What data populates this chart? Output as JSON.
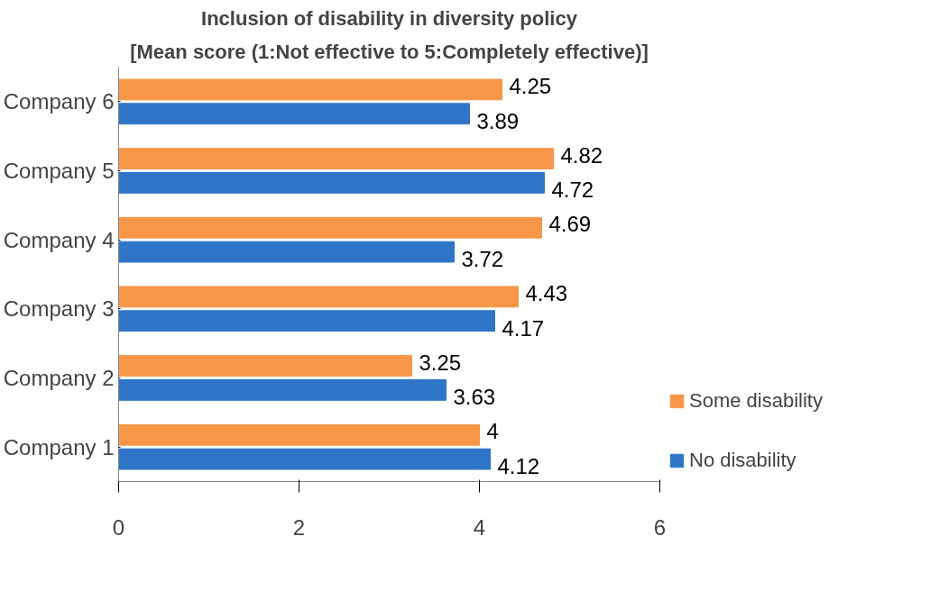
{
  "chart_data": {
    "type": "bar",
    "orientation": "horizontal",
    "title": "Inclusion of disability in diversity policy",
    "subtitle": "[Mean score (1:Not effective to 5:Completely effective)]",
    "categories": [
      "Company 6",
      "Company 5",
      "Company 4",
      "Company 3",
      "Company 2",
      "Company 1"
    ],
    "series": [
      {
        "name": "Some disability",
        "color": "#f79646",
        "values": [
          4.25,
          4.82,
          4.69,
          4.43,
          3.25,
          4
        ]
      },
      {
        "name": "No disability",
        "color": "#2e75c8",
        "values": [
          3.89,
          4.72,
          3.72,
          4.17,
          3.63,
          4.12
        ]
      }
    ],
    "xlim": [
      0,
      6
    ],
    "xticks": [
      0,
      2,
      4,
      6
    ],
    "grid": false,
    "legend": "right",
    "data_labels": true
  }
}
